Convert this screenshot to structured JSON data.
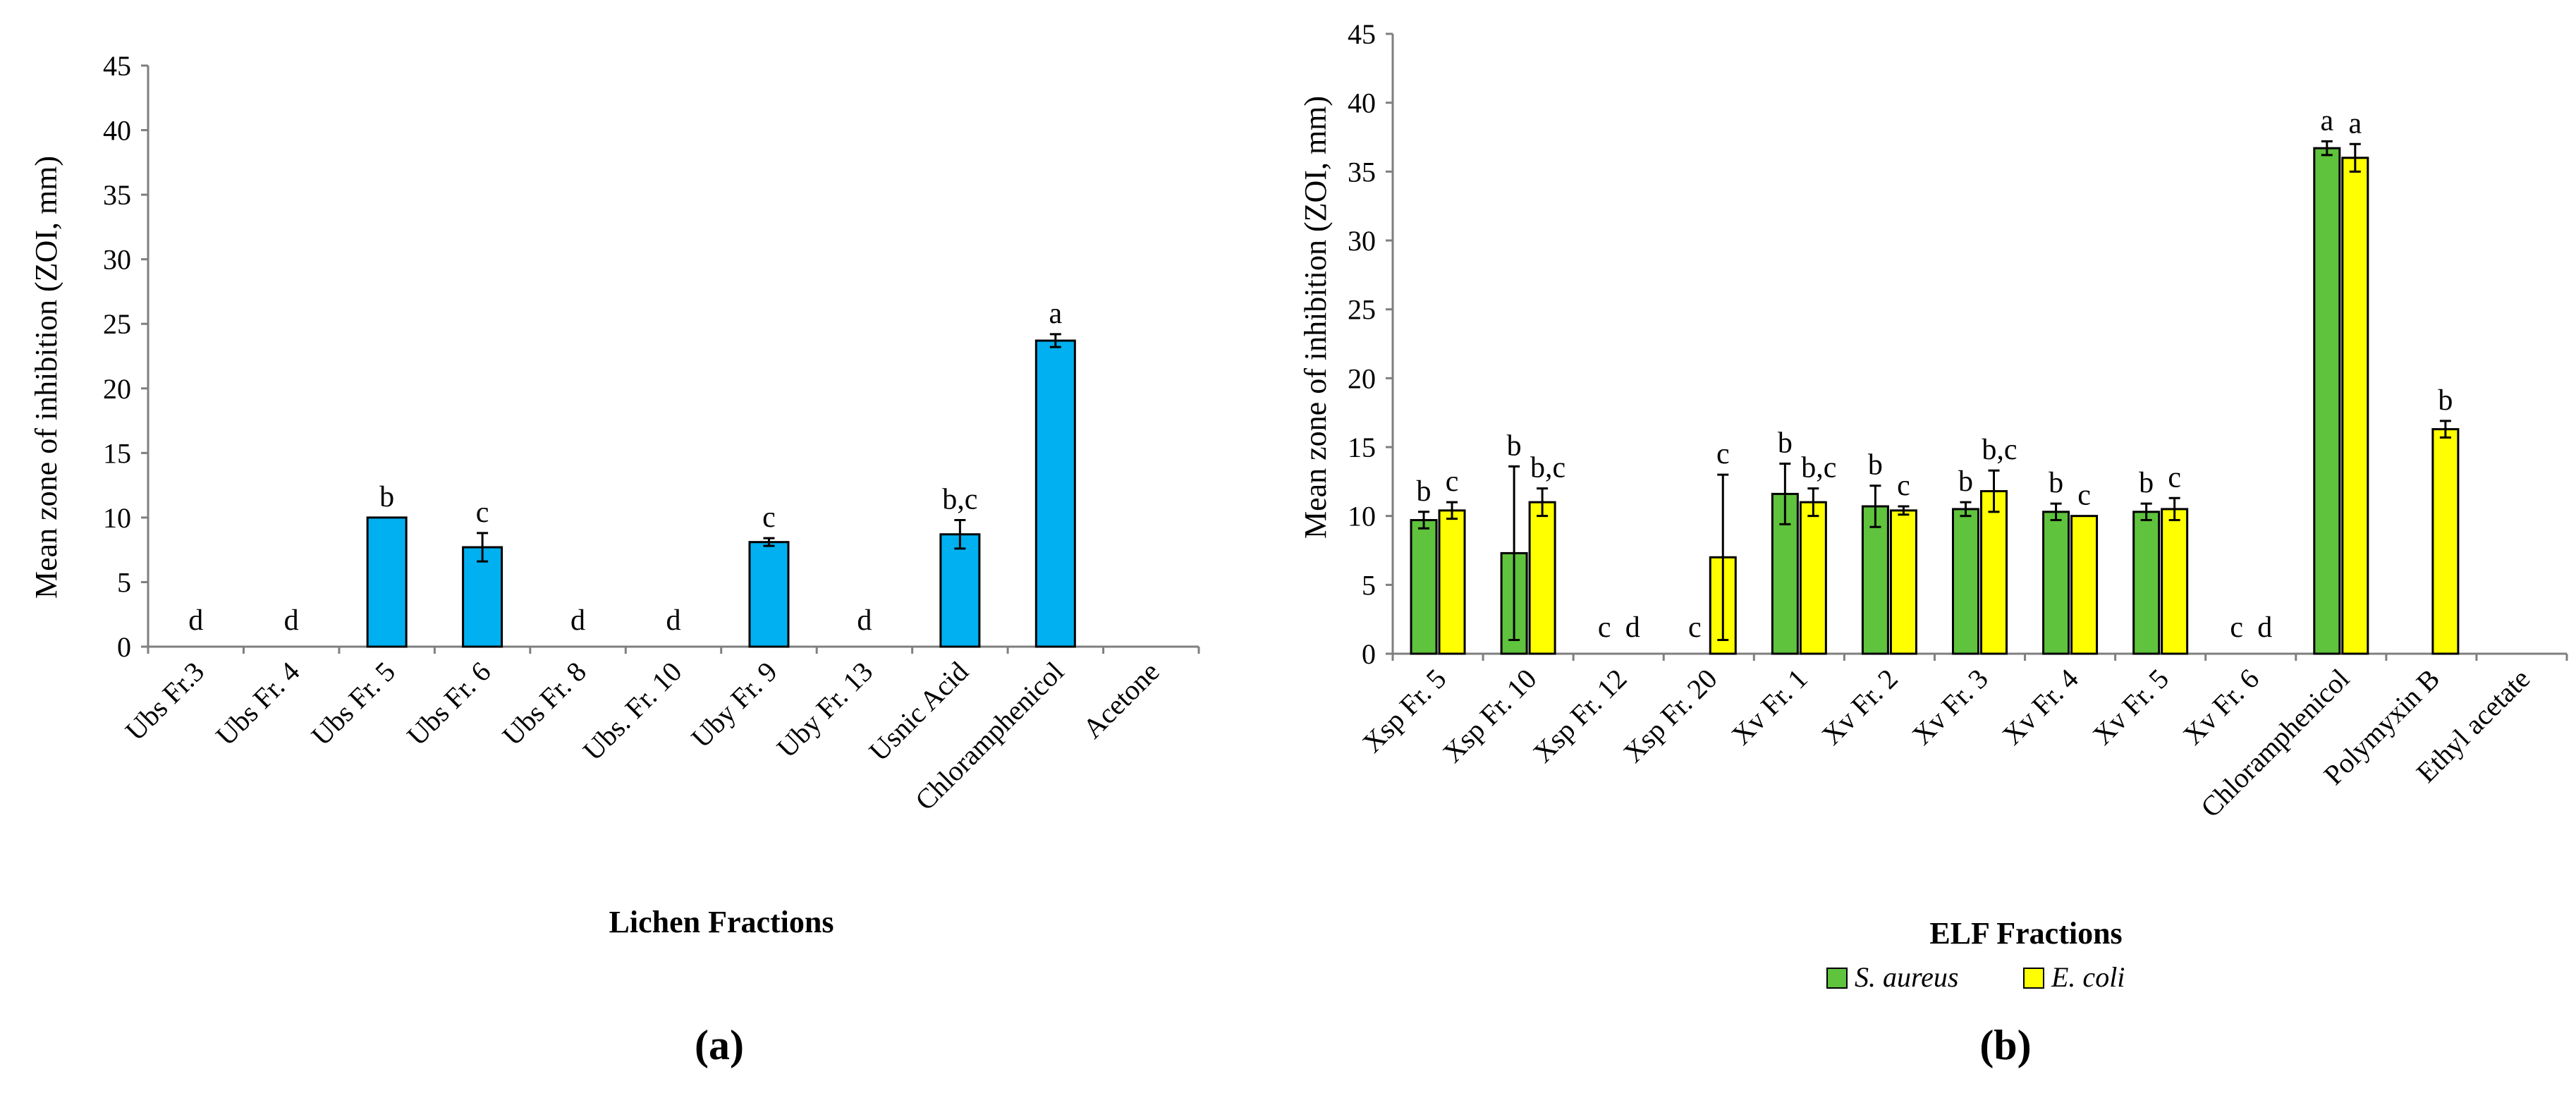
{
  "chart_data": [
    {
      "panel_label": "(a)",
      "type": "bar",
      "title": "",
      "xlabel": "Lichen Fractions",
      "ylabel": "Mean zone of inhibition (ZOI, mm)",
      "ylim": [
        0,
        45
      ],
      "yticks": [
        "0",
        "5",
        "10",
        "15",
        "20",
        "25",
        "30",
        "35",
        "40",
        "45"
      ],
      "grid": false,
      "categories": [
        "Ubs Fr.3",
        "Ubs Fr. 4",
        "Ubs Fr. 5",
        "Ubs Fr. 6",
        "Ubs Fr. 8",
        "Ubs. Fr. 10",
        "Uby Fr. 9",
        "Uby Fr. 13",
        "Usnic Acid",
        "Chloramphenicol",
        "Acetone"
      ],
      "series": [
        {
          "name": "ZOI",
          "color": "#00b0f0",
          "values": [
            0,
            0,
            10.0,
            7.7,
            0,
            0,
            8.1,
            0,
            8.7,
            23.7,
            null
          ],
          "errors": [
            0,
            0,
            0,
            1.1,
            0,
            0,
            0.3,
            0,
            1.1,
            0.5,
            null
          ],
          "letters": [
            "d",
            "d",
            "b",
            "c",
            "d",
            "d",
            "c",
            "d",
            "b,c",
            "a",
            ""
          ]
        }
      ]
    },
    {
      "panel_label": "(b)",
      "type": "bar",
      "title": "",
      "xlabel": "ELF Fractions",
      "ylabel": "Mean zone of inhibition (ZOI, mm)",
      "ylim": [
        0,
        45
      ],
      "yticks": [
        "0",
        "5",
        "10",
        "15",
        "20",
        "25",
        "30",
        "35",
        "40",
        "45"
      ],
      "grid": false,
      "legend_position": "bottom",
      "categories": [
        "Xsp Fr. 5",
        "Xsp Fr. 10",
        "Xsp Fr. 12",
        "Xsp Fr. 20",
        "Xv Fr. 1",
        "Xv Fr. 2",
        "Xv Fr. 3",
        "Xv Fr. 4",
        "Xv Fr. 5",
        "Xv Fr. 6",
        "Chloramphenicol",
        "Polymyxin B",
        "Ethyl acetate"
      ],
      "series": [
        {
          "name": "S. aureus",
          "color": "#5fc33d",
          "values": [
            9.7,
            7.3,
            0,
            0,
            11.6,
            10.7,
            10.5,
            10.3,
            10.3,
            0,
            36.7,
            0,
            null
          ],
          "errors": [
            0.6,
            6.3,
            0,
            0,
            2.2,
            1.5,
            0.5,
            0.6,
            0.6,
            0,
            0.5,
            0,
            null
          ],
          "letters": [
            "b",
            "b",
            "c",
            "c",
            "b",
            "b",
            "b",
            "b",
            "b",
            "c",
            "a",
            "",
            ""
          ]
        },
        {
          "name": "E. coli",
          "color": "#ffff00",
          "values": [
            10.4,
            11.0,
            0,
            7.0,
            11.0,
            10.4,
            11.8,
            10.0,
            10.5,
            0,
            36.0,
            16.3,
            null
          ],
          "errors": [
            0.6,
            1.0,
            0,
            6.0,
            1.0,
            0.3,
            1.5,
            0,
            0.8,
            0,
            1.0,
            0.6,
            null
          ],
          "letters": [
            "c",
            "b,c",
            "d",
            "c",
            "b,c",
            "c",
            "b,c",
            "c",
            "c",
            "d",
            "a",
            "b",
            ""
          ]
        }
      ]
    }
  ]
}
